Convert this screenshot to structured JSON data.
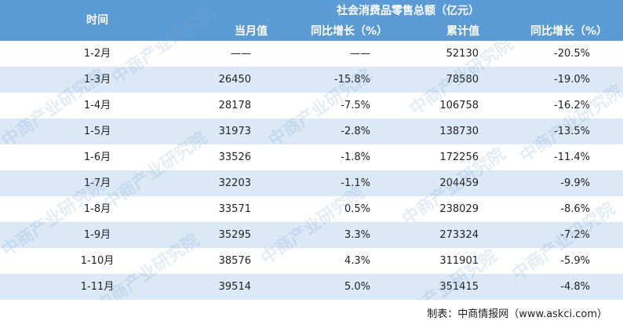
{
  "header": {
    "time": "时间",
    "group_title": "社会消费品零售总额（亿元）",
    "monthly_value": "当月值",
    "monthly_growth": "同比增长（%）",
    "cumulative_value": "累计值",
    "cumulative_growth": "同比增长（%）"
  },
  "rows": [
    {
      "time": "1-2月",
      "monthly": "——",
      "monthly_growth": "——",
      "cumulative": "52130",
      "cumulative_growth": "-20.5%"
    },
    {
      "time": "1-3月",
      "monthly": "26450",
      "monthly_growth": "-15.8%",
      "cumulative": "78580",
      "cumulative_growth": "-19.0%"
    },
    {
      "time": "1-4月",
      "monthly": "28178",
      "monthly_growth": "-7.5%",
      "cumulative": "106758",
      "cumulative_growth": "-16.2%"
    },
    {
      "time": "1-5月",
      "monthly": "31973",
      "monthly_growth": "-2.8%",
      "cumulative": "138730",
      "cumulative_growth": "-13.5%"
    },
    {
      "time": "1-6月",
      "monthly": "33526",
      "monthly_growth": "-1.8%",
      "cumulative": "172256",
      "cumulative_growth": "-11.4%"
    },
    {
      "time": "1-7月",
      "monthly": "32203",
      "monthly_growth": "-1.1%",
      "cumulative": "204459",
      "cumulative_growth": "-9.9%"
    },
    {
      "time": "1-8月",
      "monthly": "33571",
      "monthly_growth": "0.5%",
      "cumulative": "238029",
      "cumulative_growth": "-8.6%"
    },
    {
      "time": "1-9月",
      "monthly": "35295",
      "monthly_growth": "3.3%",
      "cumulative": "273324",
      "cumulative_growth": "-7.2%"
    },
    {
      "time": "1-10月",
      "monthly": "38576",
      "monthly_growth": "4.3%",
      "cumulative": "311901",
      "cumulative_growth": "-5.9%"
    },
    {
      "time": "1-11月",
      "monthly": "39514",
      "monthly_growth": "5.0%",
      "cumulative": "351415",
      "cumulative_growth": "-4.8%"
    }
  ],
  "source": "制表：中商情报网（www.askci.com）",
  "watermark": "中商产业研究院",
  "colors": {
    "header_bg": "#5b9bd5",
    "alt_row_bg": "#dbe8f6"
  }
}
